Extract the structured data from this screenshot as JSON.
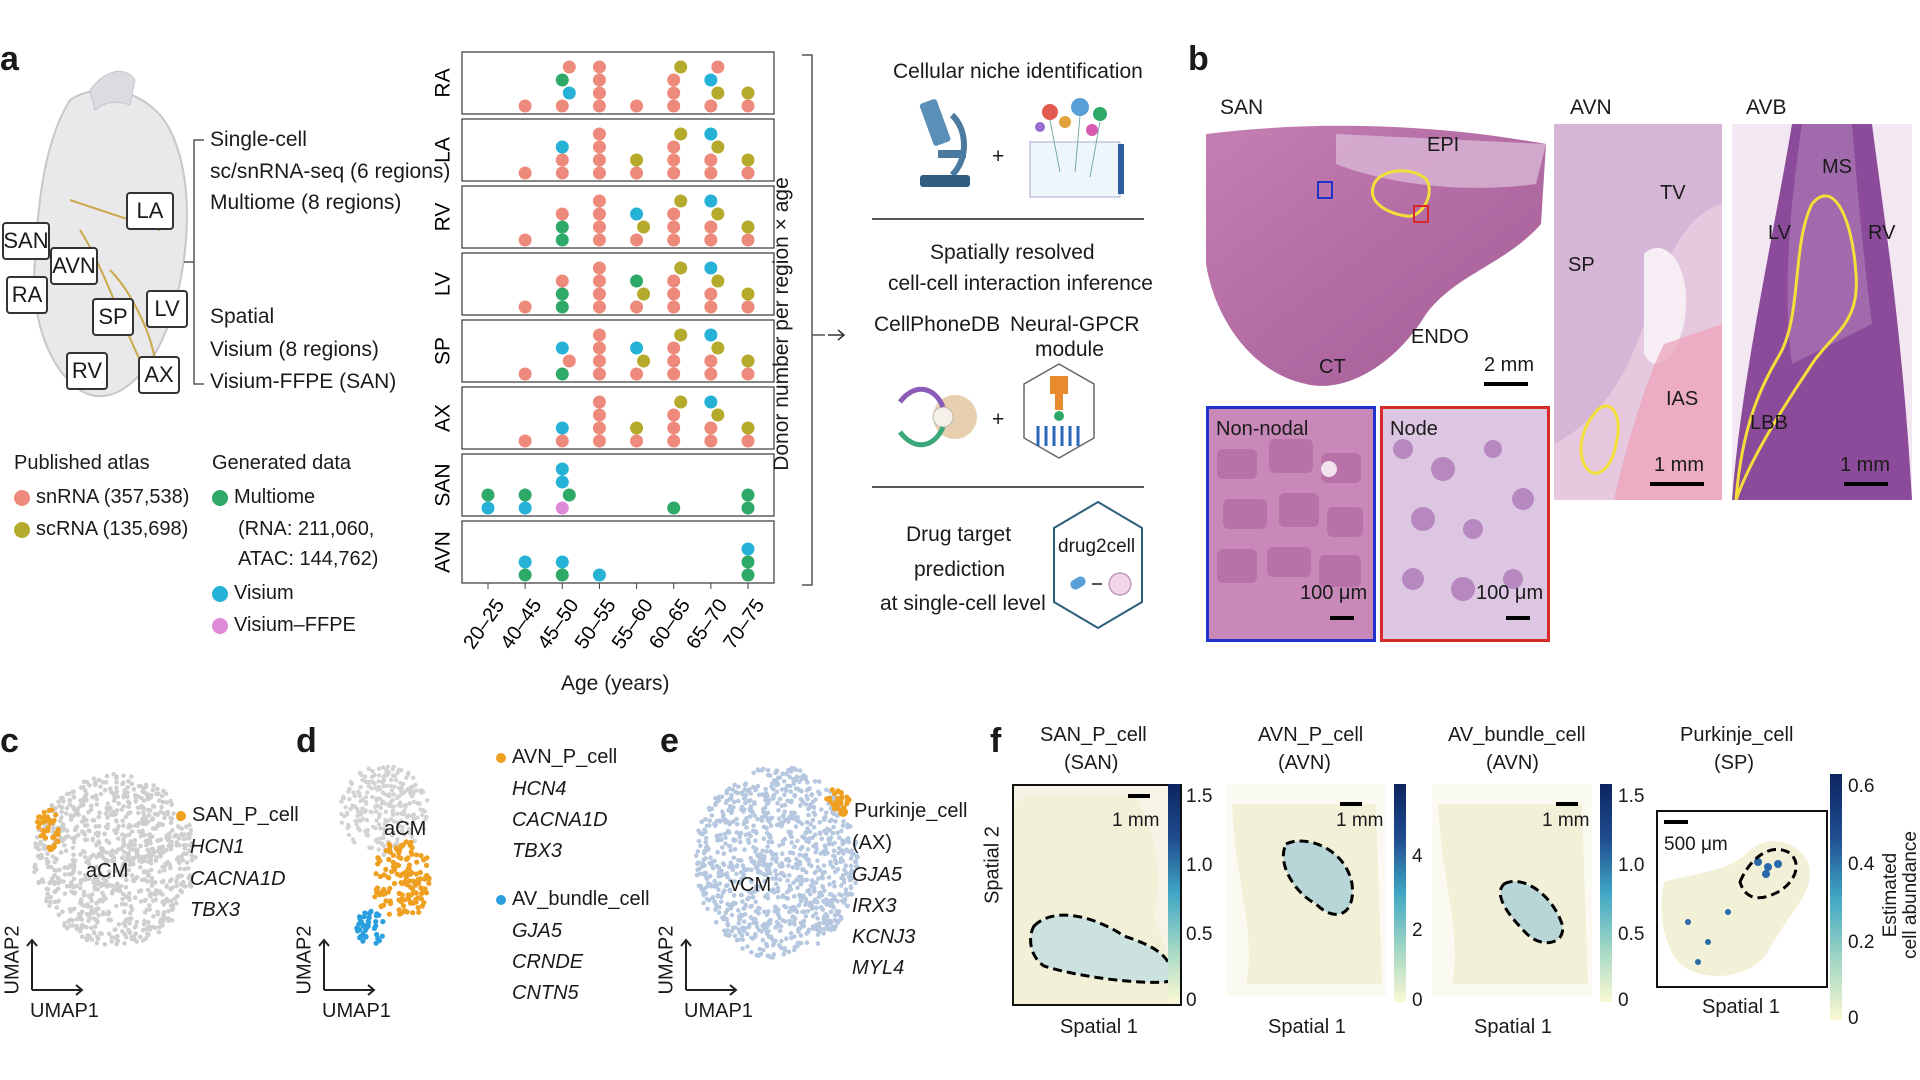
{
  "panel_labels": {
    "a": "a",
    "b": "b",
    "c": "c",
    "d": "d",
    "e": "e",
    "f": "f"
  },
  "heart_regions": [
    "LA",
    "SAN",
    "AVN",
    "RA",
    "SP",
    "LV",
    "RV",
    "AX"
  ],
  "data_types": {
    "single_cell_title": "Single-cell",
    "single_cell_line1": "sc/snRNA-seq (6 regions)",
    "single_cell_line2": "Multiome (8 regions)",
    "spatial_title": "Spatial",
    "spatial_line1": "Visium (8 regions)",
    "spatial_line2": "Visium-FFPE (SAN)"
  },
  "legend": {
    "published_title": "Published atlas",
    "snrna": "snRNA (357,538)",
    "scrna": "scRNA (135,698)",
    "generated_title": "Generated data",
    "multiome": "Multiome",
    "multiome_detail1": "(RNA: 211,060,",
    "multiome_detail2": "ATAC: 144,762)",
    "visium": "Visium",
    "visium_ffpe": "Visium–FFPE"
  },
  "colors": {
    "snrna": "#ee8a7c",
    "scrna": "#b5aa2b",
    "multiome": "#2fa968",
    "visium": "#26b2d6",
    "visium_ffpe": "#de8ad6"
  },
  "chart_data": {
    "type": "scatter",
    "title": "",
    "xlabel": "Age (years)",
    "ylabel": "Donor number per region × age",
    "categories": [
      "20–25",
      "40–45",
      "45–50",
      "50–55",
      "55–60",
      "60–65",
      "65–70",
      "70–75"
    ],
    "rows": [
      {
        "region": "RA",
        "groups": [
          [],
          [
            [
              "snrna",
              1
            ]
          ],
          [
            [
              "snrna",
              1
            ],
            [
              "visium",
              1
            ],
            [
              "multiome",
              1
            ],
            [
              "snrna",
              1
            ]
          ],
          [
            [
              "snrna",
              4
            ]
          ],
          [
            [
              "snrna",
              1
            ]
          ],
          [
            [
              "snrna",
              3
            ],
            [
              "scrna",
              2
            ],
            [
              "multiome",
              1
            ],
            [
              "scrna",
              1
            ]
          ],
          [
            [
              "snrna",
              1
            ],
            [
              "scrna",
              1
            ],
            [
              "visium",
              1
            ],
            [
              "snrna",
              1
            ]
          ],
          [
            [
              "snrna",
              1
            ],
            [
              "scrna",
              1
            ]
          ]
        ]
      },
      {
        "region": "LA",
        "groups": [
          [],
          [
            [
              "snrna",
              1
            ]
          ],
          [
            [
              "snrna",
              2
            ],
            [
              "visium",
              1
            ]
          ],
          [
            [
              "snrna",
              5
            ]
          ],
          [
            [
              "snrna",
              1
            ],
            [
              "scrna",
              1
            ]
          ],
          [
            [
              "snrna",
              3
            ],
            [
              "scrna",
              2
            ],
            [
              "visium",
              1
            ]
          ],
          [
            [
              "snrna",
              2
            ],
            [
              "scrna",
              1
            ],
            [
              "visium",
              2
            ]
          ],
          [
            [
              "snrna",
              1
            ],
            [
              "scrna",
              1
            ]
          ]
        ]
      },
      {
        "region": "RV",
        "groups": [
          [],
          [
            [
              "snrna",
              1
            ]
          ],
          [
            [
              "multiome",
              2
            ],
            [
              "snrna",
              1
            ]
          ],
          [
            [
              "snrna",
              5
            ]
          ],
          [
            [
              "snrna",
              1
            ],
            [
              "scrna",
              1
            ],
            [
              "visium",
              1
            ]
          ],
          [
            [
              "snrna",
              3
            ],
            [
              "scrna",
              2
            ],
            [
              "visium",
              1
            ]
          ],
          [
            [
              "snrna",
              2
            ],
            [
              "scrna",
              1
            ],
            [
              "visium",
              2
            ]
          ],
          [
            [
              "snrna",
              1
            ],
            [
              "scrna",
              1
            ]
          ]
        ]
      },
      {
        "region": "LV",
        "groups": [
          [],
          [
            [
              "snrna",
              1
            ]
          ],
          [
            [
              "multiome",
              2
            ],
            [
              "snrna",
              1
            ]
          ],
          [
            [
              "snrna",
              5
            ]
          ],
          [
            [
              "snrna",
              1
            ],
            [
              "scrna",
              1
            ],
            [
              "multiome",
              1
            ]
          ],
          [
            [
              "snrna",
              3
            ],
            [
              "scrna",
              2
            ],
            [
              "multiome",
              1
            ]
          ],
          [
            [
              "snrna",
              2
            ],
            [
              "scrna",
              1
            ],
            [
              "visium",
              2
            ]
          ],
          [
            [
              "snrna",
              1
            ],
            [
              "scrna",
              1
            ]
          ]
        ]
      },
      {
        "region": "SP",
        "groups": [
          [],
          [
            [
              "snrna",
              1
            ]
          ],
          [
            [
              "multiome",
              1
            ],
            [
              "snrna",
              1
            ],
            [
              "visium",
              1
            ]
          ],
          [
            [
              "snrna",
              4
            ]
          ],
          [
            [
              "snrna",
              1
            ],
            [
              "scrna",
              1
            ],
            [
              "visium",
              1
            ]
          ],
          [
            [
              "snrna",
              3
            ],
            [
              "scrna",
              2
            ],
            [
              "visium",
              1
            ]
          ],
          [
            [
              "snrna",
              2
            ],
            [
              "scrna",
              1
            ],
            [
              "visium",
              2
            ]
          ],
          [
            [
              "snrna",
              1
            ],
            [
              "scrna",
              1
            ]
          ]
        ]
      },
      {
        "region": "AX",
        "groups": [
          [],
          [
            [
              "snrna",
              1
            ]
          ],
          [
            [
              "snrna",
              1
            ],
            [
              "visium",
              1
            ]
          ],
          [
            [
              "snrna",
              5
            ]
          ],
          [
            [
              "snrna",
              1
            ],
            [
              "scrna",
              1
            ]
          ],
          [
            [
              "snrna",
              3
            ],
            [
              "scrna",
              2
            ],
            [
              "visium",
              1
            ]
          ],
          [
            [
              "snrna",
              2
            ],
            [
              "scrna",
              1
            ],
            [
              "visium",
              2
            ]
          ],
          [
            [
              "snrna",
              1
            ],
            [
              "scrna",
              1
            ]
          ]
        ]
      },
      {
        "region": "SAN",
        "groups": [
          [
            [
              "visium",
              1
            ],
            [
              "multiome",
              1
            ]
          ],
          [
            [
              "visium",
              1
            ],
            [
              "multiome",
              1
            ]
          ],
          [
            [
              "visium_ffpe",
              1
            ],
            [
              "multiome",
              1
            ],
            [
              "visium",
              2
            ]
          ],
          [],
          [],
          [
            [
              "multiome",
              1
            ]
          ],
          [],
          [
            [
              "multiome",
              2
            ]
          ]
        ]
      },
      {
        "region": "AVN",
        "groups": [
          [],
          [
            [
              "multiome",
              1
            ],
            [
              "visium",
              1
            ]
          ],
          [
            [
              "multiome",
              1
            ],
            [
              "visium",
              1
            ]
          ],
          [
            [
              "visium",
              1
            ]
          ],
          [],
          [],
          [],
          [
            [
              "multiome",
              2
            ],
            [
              "visium",
              1
            ]
          ]
        ]
      }
    ]
  },
  "workflow": {
    "niche_title": "Cellular niche identification",
    "interaction_title1": "Spatially resolved",
    "interaction_title2": "cell-cell interaction inference",
    "cellphonedb": "CellPhoneDB",
    "neuralgpcr1": "Neural-GPCR",
    "neuralgpcr2": "module",
    "drug_title1": "Drug target",
    "drug_title2": "prediction",
    "drug_title3": "at single-cell level",
    "drug2cell": "drug2cell",
    "plus": "+"
  },
  "histology": {
    "san_title": "SAN",
    "avn_title": "AVN",
    "avb_title": "AVB",
    "san_labels": {
      "epi": "EPI",
      "endo": "ENDO",
      "ct": "CT",
      "scale": "2 mm"
    },
    "nonnodal": "Non-nodal",
    "node": "Node",
    "inset_scale": "100 μm",
    "avn_labels": {
      "tv": "TV",
      "sp": "SP",
      "ias": "IAS",
      "scale": "1 mm"
    },
    "avb_labels": {
      "ms": "MS",
      "lv": "LV",
      "rv": "RV",
      "lbb": "LBB",
      "scale": "1 mm"
    }
  },
  "umap": {
    "c_cluster": "aCM",
    "c_cell": "SAN_P_cell",
    "c_genes": [
      "HCN1",
      "CACNA1D",
      "TBX3"
    ],
    "d_cluster": "aCM",
    "d_cell1": "AVN_P_cell",
    "d_genes1": [
      "HCN4",
      "CACNA1D",
      "TBX3"
    ],
    "d_cell2": "AV_bundle_cell",
    "d_genes2": [
      "GJA5",
      "CRNDE",
      "CNTN5"
    ],
    "e_cluster": "vCM",
    "e_cell": "Purkinje_cell",
    "e_region": "(AX)",
    "e_genes": [
      "GJA5",
      "IRX3",
      "KCNJ3",
      "MYL4"
    ],
    "axis_x": "UMAP1",
    "axis_y": "UMAP2"
  },
  "spatial": {
    "ylabel": "Spatial 2",
    "xlabel": "Spatial 1",
    "colorbar_label1": "Estimated",
    "colorbar_label2": "cell abundance",
    "maps": [
      {
        "title": "SAN_P_cell",
        "region": "(SAN)",
        "scale": "1 mm",
        "ticks": [
          "1.5",
          "1.0",
          "0.5",
          "0"
        ]
      },
      {
        "title": "AVN_P_cell",
        "region": "(AVN)",
        "scale": "1 mm",
        "ticks": [
          "4",
          "2",
          "0"
        ]
      },
      {
        "title": "AV_bundle_cell",
        "region": "(AVN)",
        "scale": "1 mm",
        "ticks": [
          "1.5",
          "1.0",
          "0.5",
          "0"
        ]
      },
      {
        "title": "Purkinje_cell",
        "region": "(SP)",
        "scale": "500 μm",
        "ticks": [
          "0.6",
          "0.4",
          "0.2",
          "0"
        ]
      }
    ]
  }
}
